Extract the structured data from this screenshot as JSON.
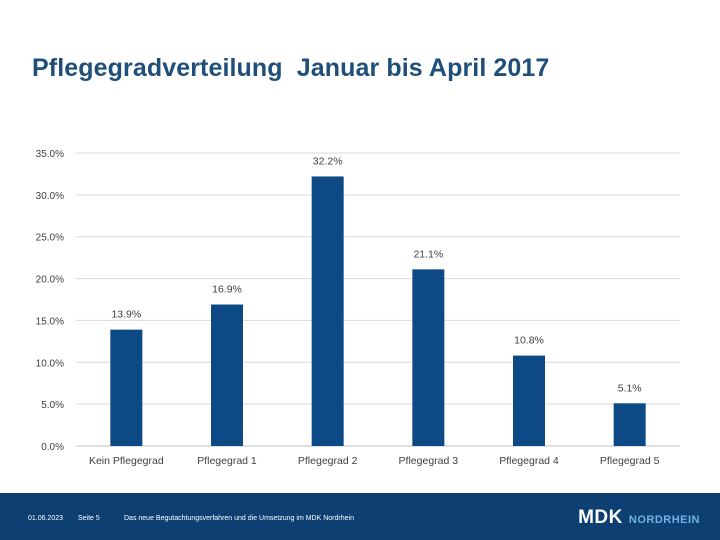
{
  "slide": {
    "title": "Pflegegradverteilung  Januar bis April 2017"
  },
  "footer": {
    "date": "01.06.2023",
    "page": "Seite 5",
    "description": "Das neue Begutachtungsverfahren und die Umsetzung im MDK Nordrhein",
    "logo_main": "MDK",
    "logo_sub": "NORDRHEIN"
  },
  "colors": {
    "bar": "#0d4a85",
    "title": "#1f4e79",
    "footer": "#0d3f72",
    "grid": "#d9d9d9"
  },
  "chart_data": {
    "type": "bar",
    "title": "",
    "xlabel": "",
    "ylabel": "",
    "ylim": [
      0,
      35
    ],
    "yticks": [
      0,
      5,
      10,
      15,
      20,
      25,
      30,
      35
    ],
    "ytick_labels": [
      "0.0%",
      "5.0%",
      "10.0%",
      "15.0%",
      "20.0%",
      "25.0%",
      "30.0%",
      "35.0%"
    ],
    "categories": [
      "Kein Pflegegrad",
      "Pflegegrad 1",
      "Pflegegrad 2",
      "Pflegegrad 3",
      "Pflegegrad 4",
      "Pflegegrad 5"
    ],
    "values": [
      13.9,
      16.9,
      32.2,
      21.1,
      10.8,
      5.1
    ],
    "value_labels": [
      "13.9%",
      "16.9%",
      "32.2%",
      "21.1%",
      "10.8%",
      "5.1%"
    ],
    "grid": true
  }
}
